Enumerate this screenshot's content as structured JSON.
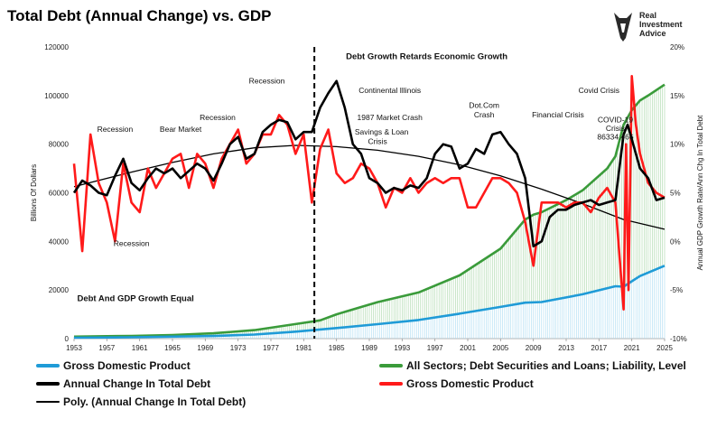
{
  "title": "Total Debt (Annual Change) vs. GDP",
  "logo": {
    "lines": [
      "Real",
      "Investment",
      "Advice"
    ],
    "icon": "bull-head-icon"
  },
  "chart_data": {
    "type": "line",
    "x_ticks": [
      "1953",
      "1957",
      "1961",
      "1965",
      "1969",
      "1973",
      "1977",
      "1981",
      "1985",
      "1989",
      "1993",
      "1997",
      "2001",
      "2005",
      "2009",
      "2013",
      "2017",
      "2021",
      "2025"
    ],
    "xlim": [
      1953,
      2025
    ],
    "left_axis": {
      "label": "Billions Of Dollars",
      "ylim": [
        0,
        120000
      ],
      "ticks": [
        "0",
        "20000",
        "40000",
        "60000",
        "80000",
        "100000",
        "120000"
      ]
    },
    "right_axis": {
      "label": "Annual GDP Growth Rate/Ann Chg In Total Debt",
      "ylim": [
        -10,
        20
      ],
      "ticks": [
        "-10%",
        "-5%",
        "0%",
        "5%",
        "10%",
        "15%",
        "20%"
      ]
    },
    "vertical_marker_year": 1982.3,
    "series": [
      {
        "name": "Gross Domestic Product",
        "axis": "left",
        "color": "#1f9bd7",
        "x": [
          1953,
          1960,
          1970,
          1975,
          1980,
          1985,
          1990,
          1995,
          2000,
          2005,
          2008,
          2010,
          2015,
          2019,
          2020,
          2021,
          2022,
          2025
        ],
        "y": [
          380,
          540,
          1070,
          1690,
          2860,
          4340,
          5960,
          7640,
          10250,
          13040,
          14770,
          15050,
          18240,
          21540,
          21350,
          23590,
          25740,
          30000
        ]
      },
      {
        "name": "All Sectors; Debt Securities and Loans; Liability, Level",
        "axis": "left",
        "color": "#3a9b3a",
        "x": [
          1953,
          1960,
          1965,
          1970,
          1975,
          1980,
          1983,
          1985,
          1988,
          1990,
          1995,
          2000,
          2005,
          2008,
          2009,
          2010,
          2013,
          2015,
          2018,
          2019,
          2020,
          2021,
          2022,
          2023,
          2025
        ],
        "y": [
          800,
          1100,
          1500,
          2200,
          3500,
          6000,
          7500,
          10000,
          13000,
          15000,
          19000,
          26000,
          37000,
          49000,
          51000,
          52000,
          57000,
          61000,
          70000,
          75000,
          88000,
          94000,
          98000,
          100000,
          104500
        ]
      },
      {
        "name": "Annual Change In Total Debt",
        "axis": "left",
        "color": "#000000",
        "x": [
          1953,
          1954,
          1955,
          1956,
          1957,
          1958,
          1959,
          1960,
          1961,
          1962,
          1963,
          1964,
          1965,
          1966,
          1967,
          1968,
          1969,
          1970,
          1971,
          1972,
          1973,
          1974,
          1975,
          1976,
          1977,
          1978,
          1979,
          1980,
          1981,
          1982,
          1983,
          1984,
          1985,
          1986,
          1987,
          1988,
          1989,
          1990,
          1991,
          1992,
          1993,
          1994,
          1995,
          1996,
          1997,
          1998,
          1999,
          2000,
          2001,
          2002,
          2003,
          2004,
          2005,
          2006,
          2007,
          2008,
          2009,
          2010,
          2011,
          2012,
          2013,
          2014,
          2015,
          2016,
          2017,
          2018,
          2019,
          2020,
          2020.5,
          2021,
          2022,
          2023,
          2024,
          2025
        ],
        "y": [
          60000,
          65000,
          63000,
          60000,
          59000,
          67000,
          74000,
          64000,
          61000,
          66000,
          70000,
          68000,
          70000,
          66000,
          69000,
          72000,
          70000,
          65000,
          72000,
          80000,
          83000,
          74000,
          76000,
          85000,
          88000,
          90000,
          89000,
          82000,
          85000,
          85000,
          95000,
          101000,
          106000,
          95000,
          80000,
          76000,
          66000,
          64000,
          60000,
          62000,
          61000,
          63000,
          62000,
          66000,
          76000,
          80000,
          79000,
          70000,
          72000,
          78000,
          76000,
          84000,
          85000,
          80000,
          76000,
          66000,
          38000,
          40000,
          50000,
          53000,
          53000,
          55000,
          56000,
          57000,
          55000,
          56000,
          57000,
          84000,
          88000,
          82000,
          70000,
          66000,
          57000,
          58000
        ]
      },
      {
        "name": "Gross Domestic Product",
        "axis": "right",
        "color": "#ff1a1a",
        "x": [
          1953,
          1954,
          1955,
          1956,
          1957,
          1958,
          1959,
          1960,
          1961,
          1962,
          1963,
          1964,
          1965,
          1966,
          1967,
          1968,
          1969,
          1970,
          1971,
          1972,
          1973,
          1974,
          1975,
          1976,
          1977,
          1978,
          1979,
          1980,
          1981,
          1982,
          1983,
          1984,
          1985,
          1986,
          1987,
          1988,
          1989,
          1990,
          1991,
          1992,
          1993,
          1994,
          1995,
          1996,
          1997,
          1998,
          1999,
          2000,
          2001,
          2002,
          2003,
          2004,
          2005,
          2006,
          2007,
          2008,
          2009,
          2010,
          2011,
          2012,
          2013,
          2014,
          2015,
          2016,
          2017,
          2018,
          2019,
          2020,
          2020.3,
          2020.6,
          2021,
          2021.5,
          2022,
          2023,
          2024,
          2025
        ],
        "y": [
          8,
          -1,
          11,
          6,
          4,
          0,
          8,
          4,
          3,
          7.5,
          5.5,
          7,
          8.5,
          9,
          5.5,
          9,
          8,
          5.5,
          8.5,
          10,
          11.5,
          8,
          9,
          11,
          11,
          13,
          12,
          9,
          11,
          4,
          9.5,
          11.5,
          7,
          6,
          6.5,
          8,
          7.5,
          6,
          3.5,
          5.5,
          5,
          6.5,
          5,
          6,
          6.5,
          6,
          6.5,
          6.5,
          3.5,
          3.5,
          5,
          6.5,
          6.5,
          6,
          5,
          2,
          -2.5,
          4,
          4,
          4,
          3.5,
          4,
          4,
          3,
          4.5,
          5.5,
          4,
          -7,
          10,
          -5,
          17,
          12,
          9,
          6,
          5,
          4.5
        ]
      },
      {
        "name": "Poly. (Annual Change In Total Debt)",
        "axis": "left",
        "color": "#000000",
        "x": [
          1953,
          1960,
          1965,
          1970,
          1975,
          1980,
          1985,
          1990,
          1995,
          2000,
          2005,
          2010,
          2015,
          2020,
          2025
        ],
        "y": [
          62500,
          68500,
          72500,
          76000,
          78500,
          79500,
          79000,
          77500,
          75000,
          71500,
          67000,
          61500,
          55500,
          49000,
          45000
        ]
      }
    ],
    "annotations": [
      {
        "text": "Recession",
        "x": 1958,
        "y": 85000
      },
      {
        "text": "Recession",
        "x": 1960,
        "y": 38000
      },
      {
        "text": "Bear Market",
        "x": 1966,
        "y": 85000
      },
      {
        "text": "Recession",
        "x": 1970.5,
        "y": 90000
      },
      {
        "text": "Recession",
        "x": 1976.5,
        "y": 105000
      },
      {
        "text": "Continental Illinois",
        "x": 1991.5,
        "y": 101000
      },
      {
        "text": "1987 Market Crash",
        "x": 1991.5,
        "y": 90000
      },
      {
        "text": "Savings & Loan",
        "x": 1990.5,
        "y": 84000
      },
      {
        "text": "Crisis",
        "x": 1990,
        "y": 80000
      },
      {
        "text": "Dot.Com",
        "x": 2003,
        "y": 95000
      },
      {
        "text": "Crash",
        "x": 2003,
        "y": 91000
      },
      {
        "text": "Financial Crisis",
        "x": 2012,
        "y": 91000
      },
      {
        "text": "Covid Crisis",
        "x": 2017,
        "y": 101000
      },
      {
        "text": "COVID-19",
        "x": 2019,
        "y": 89000
      },
      {
        "text": "Crisis",
        "x": 2019,
        "y": 85500
      },
      {
        "text": "86334.466",
        "x": 2019,
        "y": 82000
      },
      {
        "text": "Debt Growth Retards Economic Growth",
        "x": 1996,
        "y": 115000,
        "bold": true
      },
      {
        "text": "Debt And GDP Growth Equal",
        "x": 1960.5,
        "y": 15500,
        "bold": true
      }
    ]
  },
  "legend": [
    {
      "label": "Gross Domestic Product",
      "color": "#1f9bd7",
      "thin": false
    },
    {
      "label": "All Sectors; Debt Securities and Loans; Liability, Level",
      "color": "#3a9b3a",
      "thin": false
    },
    {
      "label": "Annual Change In Total Debt",
      "color": "#000000",
      "thin": false
    },
    {
      "label": "Gross Domestic Product",
      "color": "#ff1a1a",
      "thin": false
    },
    {
      "label": "Poly. (Annual Change In Total Debt)",
      "color": "#000000",
      "thin": true
    }
  ]
}
